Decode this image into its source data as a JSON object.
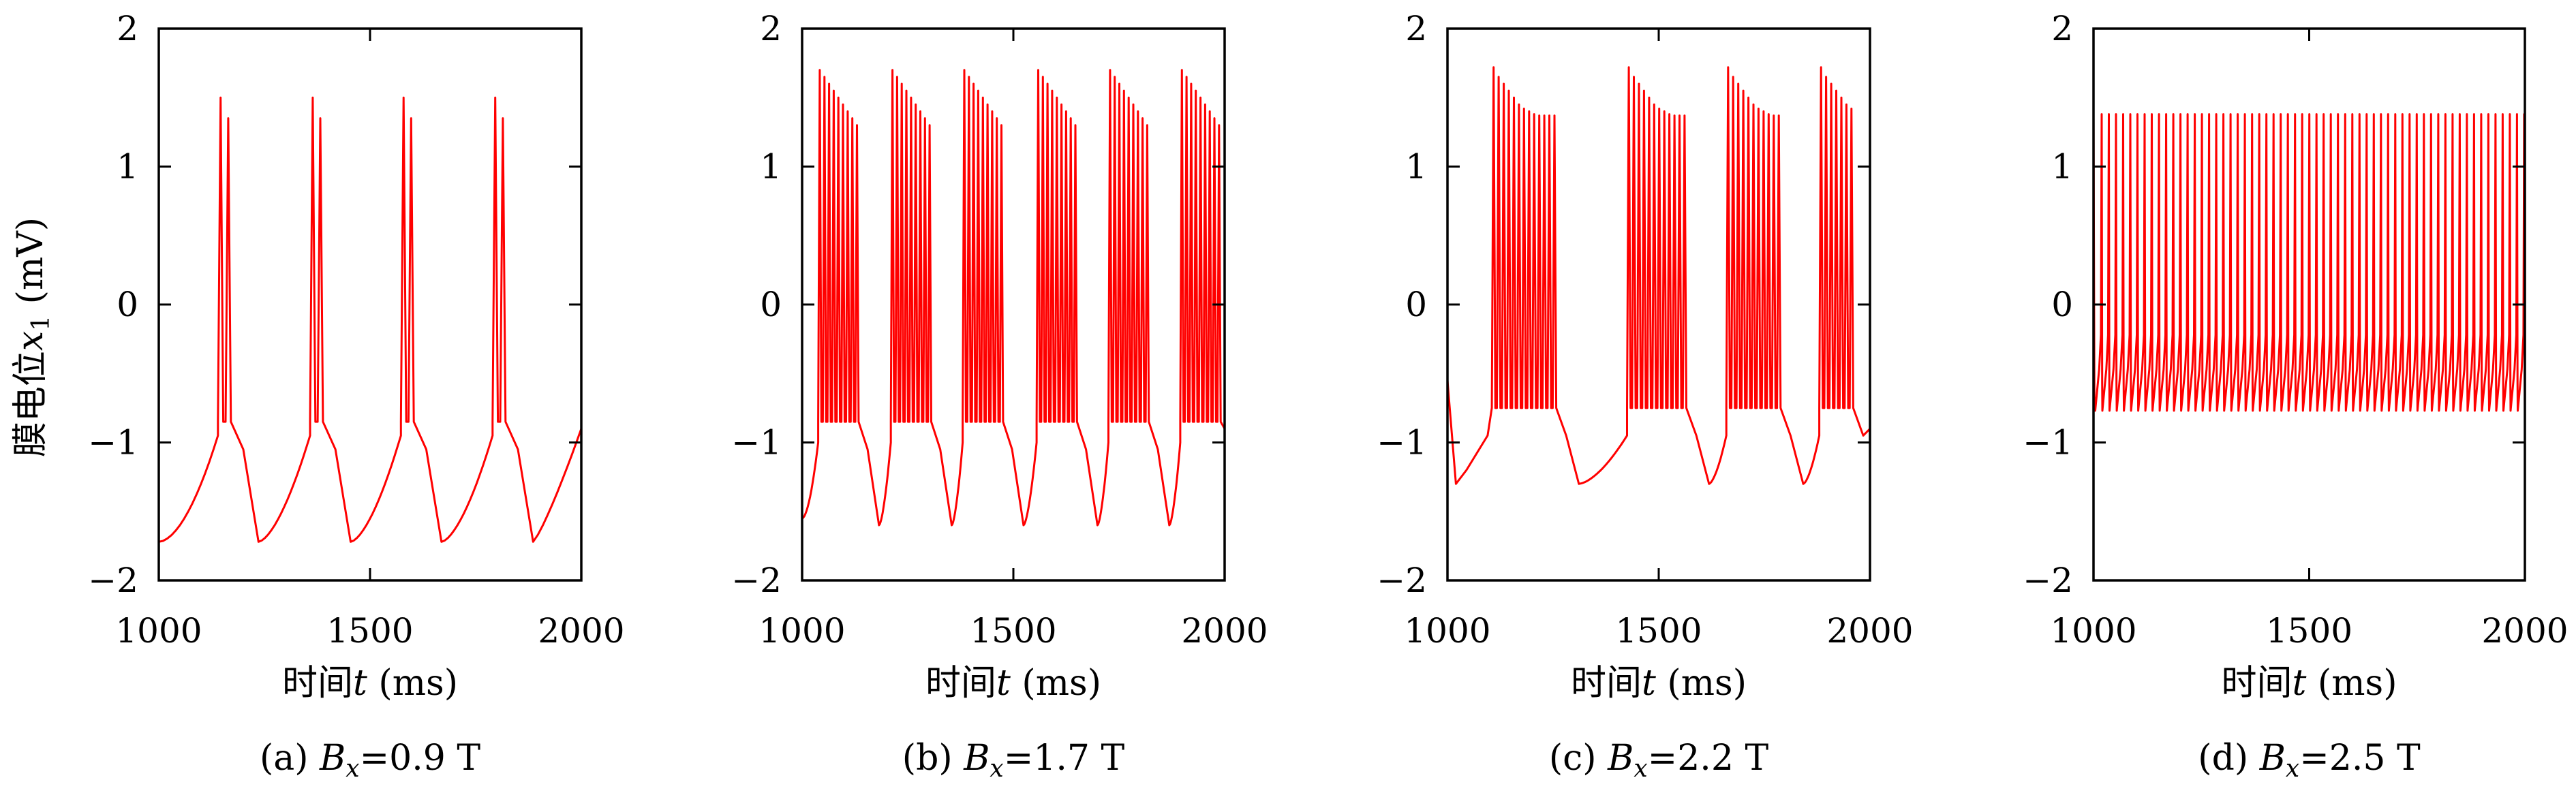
{
  "chart_data": [
    {
      "type": "line",
      "caption": "(a) Bx=0.9 T",
      "caption_parts": {
        "prefix": "(a) ",
        "var": "B",
        "sub": "x",
        "value": "=0.9 T"
      },
      "ylabel": "膜电位x1 (mV)",
      "ylabel_parts": {
        "text": "膜电位",
        "var": "x",
        "sub": "1",
        "unit": " (mV)"
      },
      "xlabel_parts": {
        "text": "时间",
        "var": "t",
        "unit": " (ms)"
      },
      "xlim": [
        1000,
        2000
      ],
      "ylim": [
        -2,
        2
      ],
      "xticks": [
        "1000",
        "1500",
        "2000"
      ],
      "yticks": [
        "−2",
        "−1",
        "0",
        "1",
        "2"
      ],
      "color": "#ff0000",
      "series": [
        {
          "pattern": "bursting",
          "burst_times": [
            1140,
            1358,
            1573,
            1790
          ],
          "spikes_per_burst": 2,
          "spike_isi": 18,
          "spike_peaks": [
            1.5,
            1.35
          ],
          "trough": -1.72,
          "trough_delay": 60,
          "pre_burst_level": -0.95,
          "burst_floor": -0.85,
          "start_value": -1.72,
          "end_value": -0.9
        }
      ]
    },
    {
      "type": "line",
      "caption": "(b) Bx=1.7 T",
      "caption_parts": {
        "prefix": "(b) ",
        "var": "B",
        "sub": "x",
        "value": "=1.7 T"
      },
      "ylabel": "",
      "xlabel_parts": {
        "text": "时间",
        "var": "t",
        "unit": " (ms)"
      },
      "xlim": [
        1000,
        2000
      ],
      "ylim": [
        -2,
        2
      ],
      "xticks": [
        "1000",
        "1500",
        "2000"
      ],
      "yticks": [
        "−2",
        "−1",
        "0",
        "1",
        "2"
      ],
      "color": "#ff0000",
      "series": [
        {
          "pattern": "bursting",
          "burst_times": [
            1038,
            1210,
            1380,
            1555,
            1725,
            1895
          ],
          "spikes_per_burst": 9,
          "spike_isi": 11,
          "spike_peaks": [
            1.7,
            1.65,
            1.6,
            1.55,
            1.5,
            1.45,
            1.4,
            1.35,
            1.3
          ],
          "trough": -1.6,
          "trough_delay": 45,
          "pre_burst_level": -1.0,
          "burst_floor": -0.85,
          "start_value": -1.55,
          "end_value": -0.9
        }
      ]
    },
    {
      "type": "line",
      "caption": "(c) Bx=2.2 T",
      "caption_parts": {
        "prefix": "(c) ",
        "var": "B",
        "sub": "x",
        "value": "=2.2 T"
      },
      "ylabel": "",
      "xlabel_parts": {
        "text": "时间",
        "var": "t",
        "unit": " (ms)"
      },
      "xlim": [
        1000,
        2000
      ],
      "ylim": [
        -2,
        2
      ],
      "xticks": [
        "1000",
        "1500",
        "2000"
      ],
      "yticks": [
        "−2",
        "−1",
        "0",
        "1",
        "2"
      ],
      "color": "#ff0000",
      "series": [
        {
          "pattern": "bursting",
          "burst_times": [
            1105,
            1425,
            1660,
            1880
          ],
          "spikes_per_burst": [
            13,
            12,
            11,
            7
          ],
          "spike_isi": 12,
          "spike_peaks": [
            1.72,
            1.65,
            1.6,
            1.55,
            1.5,
            1.45,
            1.42,
            1.4,
            1.38,
            1.37,
            1.37,
            1.37,
            1.37
          ],
          "trough": -1.3,
          "trough_delay": 50,
          "pre_burst_level": -0.95,
          "burst_floor": -0.75,
          "start_value": -0.55,
          "end_value": -0.9
        }
      ]
    },
    {
      "type": "line",
      "caption": "(d) Bx=2.5 T",
      "caption_parts": {
        "prefix": "(d) ",
        "var": "B",
        "sub": "x",
        "value": "=2.5 T"
      },
      "ylabel": "",
      "xlabel_parts": {
        "text": "时间",
        "var": "t",
        "unit": " (ms)"
      },
      "xlim": [
        1000,
        2000
      ],
      "ylim": [
        -2,
        2
      ],
      "xticks": [
        "1000",
        "1500",
        "2000"
      ],
      "yticks": [
        "−2",
        "−1",
        "0",
        "1",
        "2"
      ],
      "color": "#ff0000",
      "series": [
        {
          "pattern": "tonic",
          "period": 16.6,
          "spike_peak": 1.38,
          "trough": -0.77,
          "start_value": 1.38
        }
      ]
    }
  ]
}
